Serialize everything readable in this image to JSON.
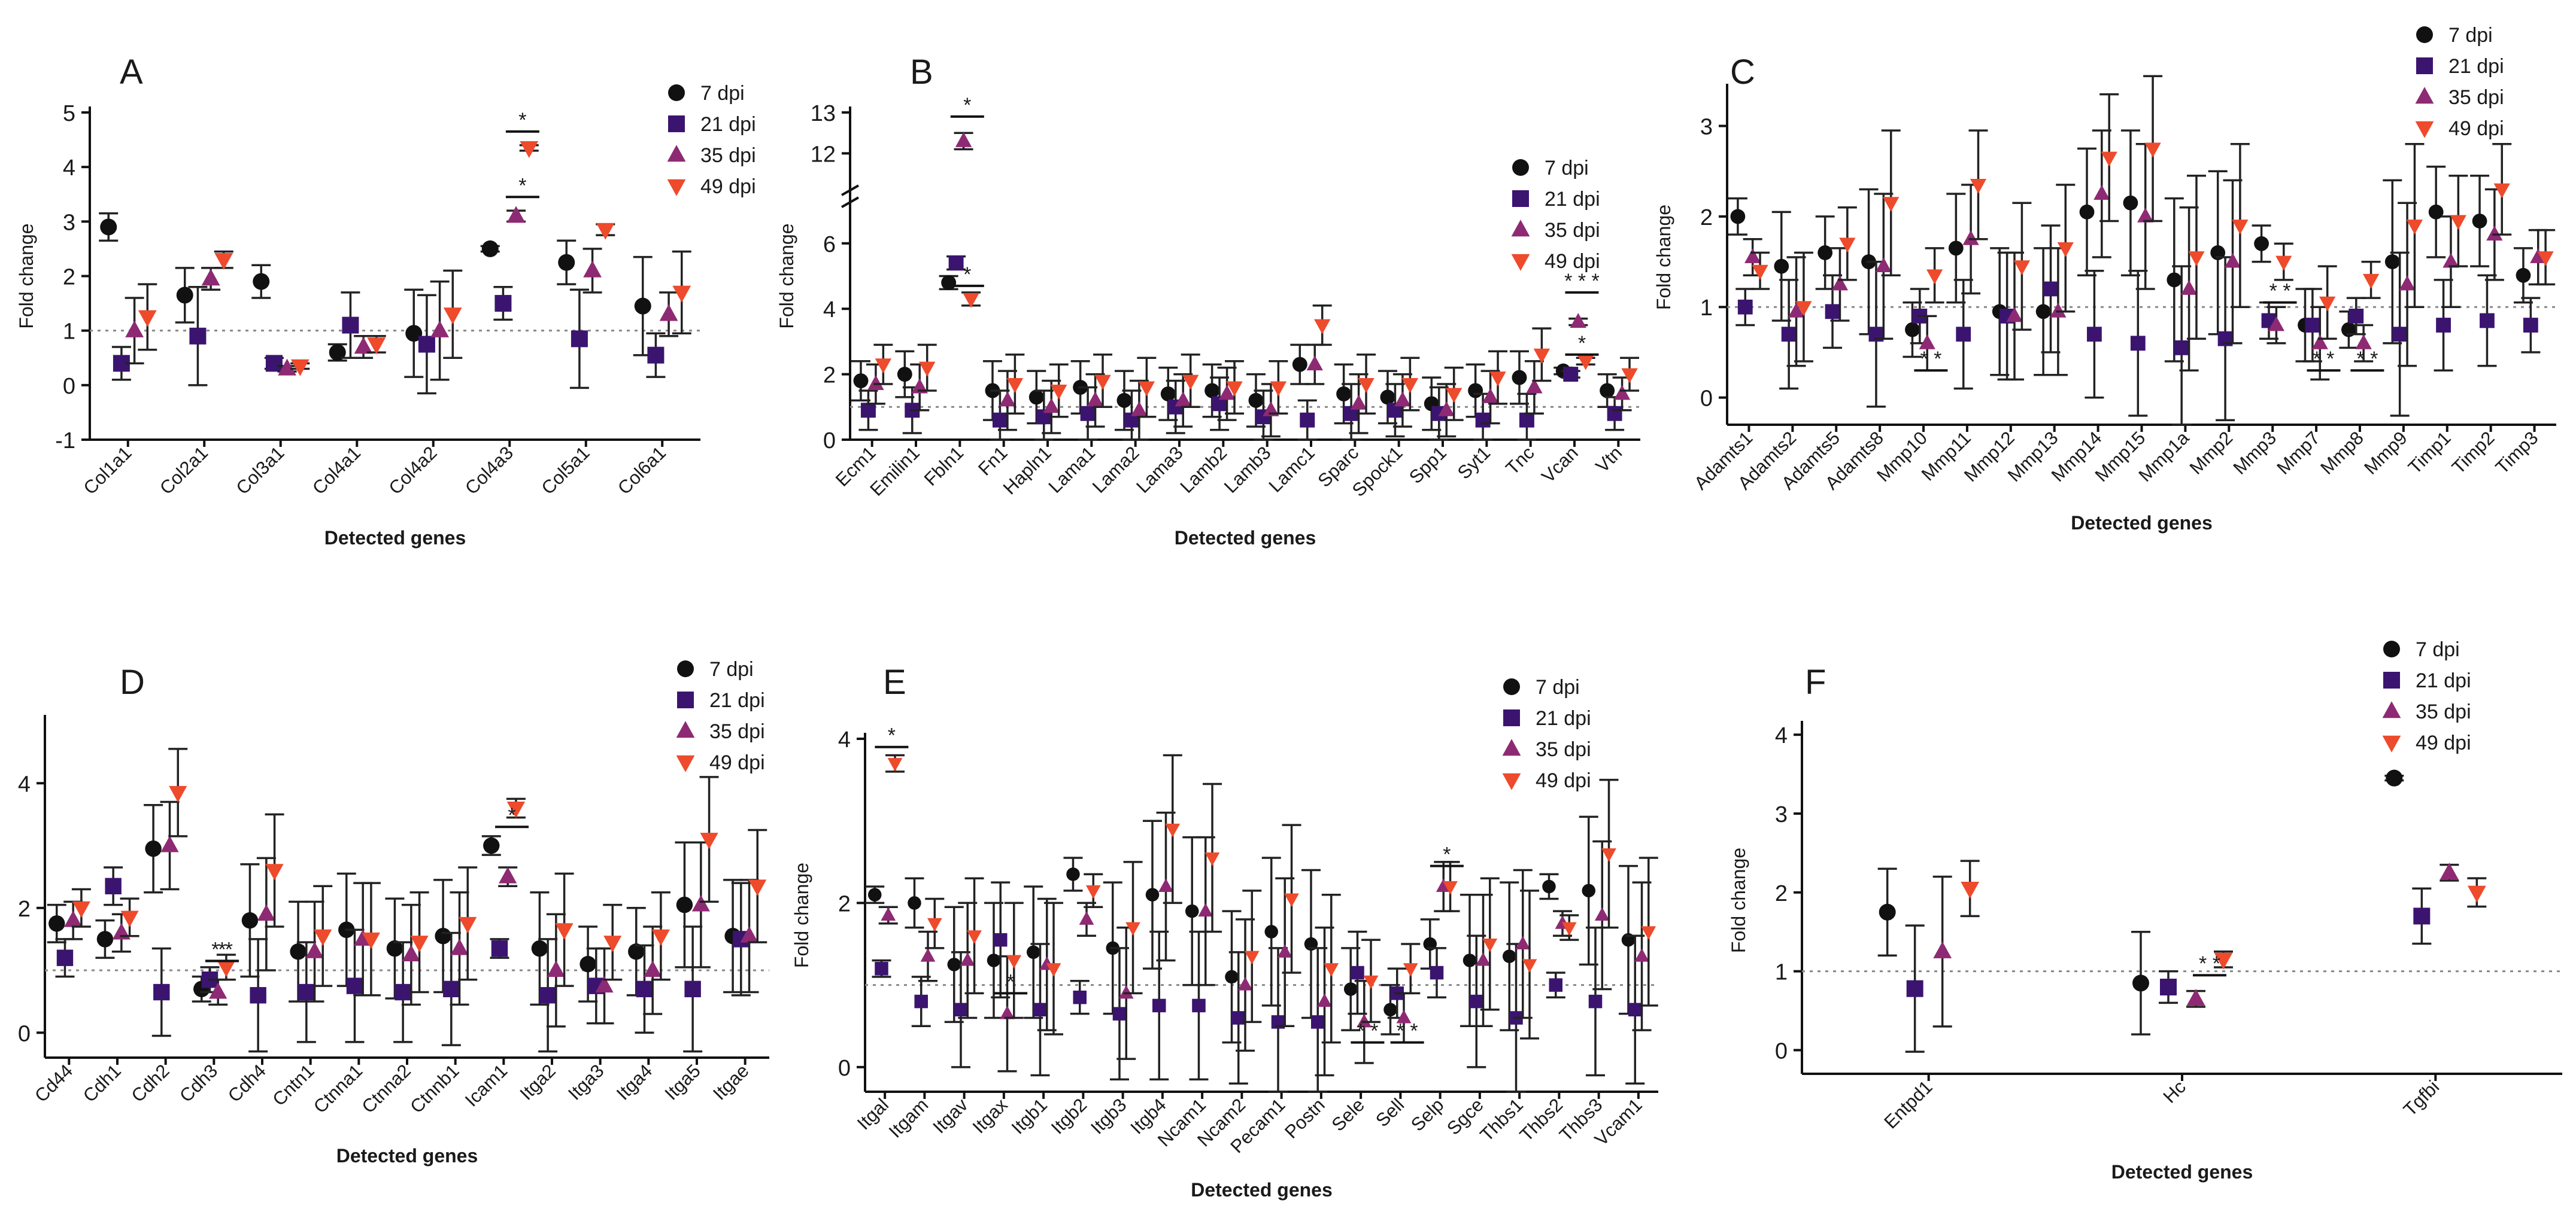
{
  "colors": {
    "dpi7": "#111111",
    "dpi21": "#3b1470",
    "dpi35": "#8e2a73",
    "dpi49": "#ee4a2c"
  },
  "legend_labels": [
    "7 dpi",
    "21 dpi",
    "35 dpi",
    "49 dpi"
  ],
  "chart_data": [
    {
      "type": "scatter",
      "letter": "A",
      "xlabel": "Detected genes",
      "ylabel": "Fold change",
      "ylim": [
        -1,
        5
      ],
      "yticks": [
        -1,
        0,
        1,
        2,
        3,
        4,
        5
      ],
      "reference_line": 1,
      "legend": "top-right",
      "categories": [
        "Col1a1",
        "Col2a1",
        "Col3a1",
        "Col4a1",
        "Col4a2",
        "Col4a3",
        "Col5a1",
        "Col6a1"
      ],
      "series": [
        {
          "name": "7 dpi",
          "values": [
            2.9,
            1.65,
            1.9,
            0.6,
            0.95,
            2.5,
            2.25,
            1.45
          ],
          "err": [
            0.25,
            0.5,
            0.3,
            0.15,
            0.8,
            0.05,
            0.4,
            0.9
          ]
        },
        {
          "name": "21 dpi",
          "values": [
            0.4,
            0.9,
            0.4,
            1.1,
            0.75,
            1.5,
            0.85,
            0.55
          ],
          "err": [
            0.3,
            0.9,
            0.1,
            0.6,
            0.9,
            0.3,
            0.9,
            0.4
          ]
        },
        {
          "name": "35 dpi",
          "values": [
            1.0,
            1.95,
            0.3,
            0.7,
            1.0,
            3.1,
            2.1,
            1.3
          ],
          "err": [
            0.6,
            0.2,
            0.05,
            0.2,
            0.9,
            0.1,
            0.4,
            0.4
          ]
        },
        {
          "name": "49 dpi",
          "values": [
            1.25,
            2.3,
            0.35,
            0.75,
            1.3,
            4.35,
            2.85,
            1.7
          ],
          "err": [
            0.6,
            0.15,
            0.05,
            0.15,
            0.8,
            0.05,
            0.1,
            0.75
          ]
        }
      ],
      "annotations": [
        {
          "category": "Col4a3",
          "text": "*",
          "y": 3.45
        },
        {
          "category": "Col4a3",
          "text": "*",
          "y": 4.65
        }
      ]
    },
    {
      "type": "scatter",
      "letter": "B",
      "xlabel": "Detected genes",
      "ylabel": "Fold change",
      "ylim": [
        0,
        13
      ],
      "yticks": [
        0,
        2,
        4,
        6,
        12,
        13
      ],
      "axis_break": [
        7,
        11
      ],
      "reference_line": 1,
      "legend": "top-right",
      "categories": [
        "Ecm1",
        "Emilin1",
        "Fbln1",
        "Fn1",
        "Hapln1",
        "Lama1",
        "Lama2",
        "Lama3",
        "Lamb2",
        "Lamb3",
        "Lamc1",
        "Sparc",
        "Spock1",
        "Spp1",
        "Syt1",
        "Tnc",
        "Vcan",
        "Vtn"
      ],
      "series": [
        {
          "name": "7 dpi",
          "values": [
            1.8,
            2.0,
            4.8,
            1.5,
            1.3,
            1.6,
            1.2,
            1.4,
            1.5,
            1.2,
            2.3,
            1.4,
            1.3,
            1.1,
            1.5,
            1.9,
            2.1,
            1.5
          ],
          "err": [
            0.6,
            0.7,
            0.2,
            0.9,
            0.8,
            0.8,
            0.9,
            0.8,
            0.8,
            0.8,
            0.6,
            0.9,
            0.8,
            0.8,
            0.8,
            0.8,
            0.1,
            0.5
          ]
        },
        {
          "name": "21 dpi",
          "values": [
            0.9,
            0.9,
            5.4,
            0.6,
            0.7,
            0.8,
            0.6,
            1.0,
            1.1,
            0.7,
            0.6,
            0.8,
            0.9,
            0.8,
            0.6,
            0.6,
            2.0,
            0.8
          ]
        },
        {
          "name": "35 dpi",
          "values": [
            1.7,
            1.6,
            12.3,
            1.2,
            1.0,
            1.2,
            0.9,
            1.2,
            1.4,
            0.9,
            2.3,
            1.1,
            1.2,
            0.9,
            1.3,
            1.6,
            3.6,
            1.4
          ]
        },
        {
          "name": "49 dpi",
          "values": [
            2.3,
            2.2,
            4.3,
            1.7,
            1.5,
            1.8,
            1.6,
            1.8,
            1.6,
            1.6,
            3.5,
            1.7,
            1.7,
            1.4,
            1.9,
            2.6,
            2.4,
            2.0
          ]
        }
      ],
      "annotations": [
        {
          "category": "Fbln1",
          "text": "*",
          "y": 12.9
        },
        {
          "category": "Fbln1",
          "text": "*",
          "y": 4.7
        },
        {
          "category": "Vcan",
          "text": "* * *",
          "y": 4.5
        },
        {
          "category": "Vcan",
          "text": "*",
          "y": 2.6
        }
      ]
    },
    {
      "type": "scatter",
      "letter": "C",
      "xlabel": "Detected genes",
      "ylabel": "Fold change",
      "ylim": [
        -0.3,
        3.4
      ],
      "yticks": [
        0,
        1,
        2,
        3
      ],
      "reference_line": 1,
      "legend": "top-right",
      "categories": [
        "Adamts1",
        "Adamts2",
        "Adamts5",
        "Adamts8",
        "Mmp10",
        "Mmp11",
        "Mmp12",
        "Mmp13",
        "Mmp14",
        "Mmp15",
        "Mmp1a",
        "Mmp2",
        "Mmp3",
        "Mmp7",
        "Mmp8",
        "Mmp9",
        "Timp1",
        "Timp2",
        "Timp3"
      ],
      "series": [
        {
          "name": "7 dpi",
          "values": [
            2.0,
            1.45,
            1.6,
            1.5,
            0.75,
            1.65,
            0.95,
            0.95,
            2.05,
            2.15,
            1.3,
            1.6,
            1.7,
            0.8,
            0.75,
            1.5,
            2.05,
            1.95,
            1.35
          ],
          "err": [
            0.2,
            0.6,
            0.4,
            0.8,
            0.3,
            0.6,
            0.7,
            0.7,
            0.7,
            0.8,
            0.9,
            0.9,
            0.2,
            0.4,
            0.2,
            0.9,
            0.5,
            0.5,
            0.3
          ]
        },
        {
          "name": "21 dpi",
          "values": [
            1.0,
            0.7,
            0.95,
            0.7,
            0.9,
            0.7,
            0.9,
            1.2,
            0.7,
            0.6,
            0.55,
            0.65,
            0.85,
            0.8,
            0.9,
            0.7,
            0.8,
            0.85,
            0.8
          ]
        },
        {
          "name": "35 dpi",
          "values": [
            1.55,
            0.95,
            1.25,
            1.45,
            0.6,
            1.75,
            0.9,
            0.95,
            2.25,
            2.0,
            1.2,
            1.5,
            0.8,
            0.6,
            0.6,
            1.25,
            1.5,
            1.8,
            1.55
          ]
        },
        {
          "name": "49 dpi",
          "values": [
            1.4,
            1.0,
            1.7,
            2.15,
            1.35,
            2.35,
            1.45,
            1.65,
            2.65,
            2.75,
            1.55,
            1.9,
            1.5,
            1.05,
            1.3,
            1.9,
            1.95,
            2.3,
            1.55
          ]
        }
      ],
      "annotations": [
        {
          "category": "Mmp10",
          "text": "* *",
          "y": 0.3
        },
        {
          "category": "Mmp3",
          "text": "* *",
          "y": 1.05
        },
        {
          "category": "Mmp7",
          "text": "* *",
          "y": 0.3
        },
        {
          "category": "Mmp8",
          "text": "* *",
          "y": 0.3
        }
      ]
    },
    {
      "type": "scatter",
      "letter": "D",
      "xlabel": "Detected genes",
      "ylabel": "Fold change",
      "ylim": [
        -0.4,
        5.0
      ],
      "yticks": [
        0,
        2,
        4
      ],
      "reference_line": 1,
      "legend": "top-right",
      "categories": [
        "Cd44",
        "Cdh1",
        "Cdh2",
        "Cdh3",
        "Cdh4",
        "Cntn1",
        "Ctnna1",
        "Ctnna2",
        "Ctnnb1",
        "Icam1",
        "Itga2",
        "Itga3",
        "Itga4",
        "Itga5",
        "Itgae"
      ],
      "series": [
        {
          "name": "7 dpi",
          "values": [
            1.75,
            1.5,
            2.95,
            0.7,
            1.8,
            1.3,
            1.65,
            1.35,
            1.55,
            3.0,
            1.35,
            1.1,
            1.3,
            2.05,
            1.55
          ],
          "err": [
            0.3,
            0.3,
            0.7,
            0.2,
            0.9,
            0.8,
            0.9,
            0.8,
            0.9,
            0.15,
            0.9,
            0.6,
            0.7,
            1.0,
            0.9
          ]
        },
        {
          "name": "21 dpi",
          "values": [
            1.2,
            2.35,
            0.65,
            0.85,
            0.6,
            0.65,
            0.75,
            0.65,
            0.7,
            1.35,
            0.6,
            0.75,
            0.7,
            0.7,
            1.5
          ]
        },
        {
          "name": "35 dpi",
          "values": [
            1.8,
            1.6,
            3.0,
            0.65,
            1.9,
            1.3,
            1.5,
            1.25,
            1.35,
            2.5,
            1.0,
            0.75,
            1.0,
            2.05,
            1.55
          ]
        },
        {
          "name": "49 dpi",
          "values": [
            2.0,
            1.85,
            3.85,
            1.05,
            2.6,
            1.55,
            1.5,
            1.45,
            1.75,
            3.6,
            1.65,
            1.45,
            1.55,
            3.1,
            2.35
          ]
        }
      ],
      "annotations": [
        {
          "category": "Cdh3",
          "text": "*",
          "y": 1.15
        },
        {
          "category": "Cdh3",
          "text": "* *",
          "y": 1.15
        },
        {
          "category": "Icam1",
          "text": "*",
          "y": 3.3
        }
      ]
    },
    {
      "type": "scatter",
      "letter": "E",
      "xlabel": "Detected genes",
      "ylabel": "Fold change",
      "ylim": [
        -0.3,
        4.0
      ],
      "yticks": [
        0,
        2,
        4
      ],
      "reference_line": 1,
      "legend": "top-right",
      "categories": [
        "Itgal",
        "Itgam",
        "Itgav",
        "Itgax",
        "Itgb1",
        "Itgb2",
        "Itgb3",
        "Itgb4",
        "Ncam1",
        "Ncam2",
        "Pecam1",
        "Postn",
        "Sele",
        "Sell",
        "Selp",
        "Sgce",
        "Thbs1",
        "Thbs2",
        "Thbs3",
        "Vcam1"
      ],
      "series": [
        {
          "name": "7 dpi",
          "values": [
            2.1,
            2.0,
            1.25,
            1.3,
            1.4,
            2.35,
            1.45,
            2.1,
            1.9,
            1.1,
            1.65,
            1.5,
            0.95,
            0.7,
            1.5,
            1.3,
            1.35,
            2.2,
            2.15,
            1.55
          ],
          "err": [
            0.1,
            0.3,
            0.7,
            0.7,
            0.8,
            0.2,
            0.8,
            0.9,
            0.9,
            0.8,
            0.9,
            0.9,
            0.5,
            0.3,
            0.3,
            0.8,
            0.9,
            0.15,
            0.9,
            0.9
          ]
        },
        {
          "name": "21 dpi",
          "values": [
            1.2,
            0.8,
            0.7,
            1.55,
            0.7,
            0.85,
            0.65,
            0.75,
            0.75,
            0.6,
            0.55,
            0.55,
            1.15,
            0.9,
            1.15,
            0.8,
            0.6,
            1.0,
            0.8,
            0.7
          ]
        },
        {
          "name": "35 dpi",
          "values": [
            1.85,
            1.35,
            1.3,
            0.65,
            1.25,
            1.8,
            0.9,
            2.2,
            1.9,
            1.0,
            1.4,
            0.8,
            0.55,
            0.6,
            2.2,
            1.3,
            1.5,
            1.75,
            1.85,
            1.35
          ]
        },
        {
          "name": "49 dpi",
          "values": [
            3.7,
            1.75,
            1.6,
            1.3,
            1.2,
            2.15,
            1.7,
            2.9,
            2.55,
            1.35,
            2.05,
            1.2,
            1.05,
            1.2,
            2.2,
            1.5,
            1.25,
            1.7,
            2.6,
            1.65
          ]
        }
      ],
      "annotations": [
        {
          "category": "Itgal",
          "text": "*",
          "y": 3.9
        },
        {
          "category": "Itgax",
          "text": "*",
          "y": 0.9
        },
        {
          "category": "Sele",
          "text": "* *",
          "y": 0.3
        },
        {
          "category": "Sell",
          "text": "* *",
          "y": 0.3
        },
        {
          "category": "Selp",
          "text": "*",
          "y": 2.45
        }
      ]
    },
    {
      "type": "scatter",
      "letter": "F",
      "xlabel": "Detected genes",
      "ylabel": "Fold change",
      "ylim": [
        -0.3,
        4.1
      ],
      "yticks": [
        0,
        1,
        2,
        3,
        4
      ],
      "reference_line": 1,
      "legend": "top-right",
      "categories": [
        "Entpd1",
        "Hc",
        "Tgfbi"
      ],
      "series": [
        {
          "name": "7 dpi",
          "values": [
            1.75,
            0.85,
            3.45
          ],
          "err": [
            0.55,
            0.65,
            0.03
          ]
        },
        {
          "name": "21 dpi",
          "values": [
            0.78,
            0.8,
            1.7
          ],
          "err": [
            0.8,
            0.2,
            0.35
          ]
        },
        {
          "name": "35 dpi",
          "values": [
            1.25,
            0.65,
            2.25
          ],
          "err": [
            0.95,
            0.1,
            0.1
          ]
        },
        {
          "name": "49 dpi",
          "values": [
            2.05,
            1.15,
            2.0
          ],
          "err": [
            0.35,
            0.1,
            0.18
          ]
        }
      ],
      "annotations": [
        {
          "category": "Hc",
          "text": "* *",
          "y": 0.95
        }
      ]
    }
  ]
}
